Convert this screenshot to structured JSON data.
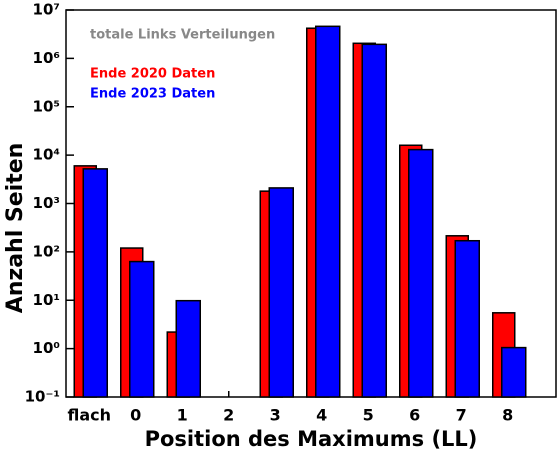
{
  "chart_data": {
    "type": "bar",
    "annotation": "totale Links Verteilungen",
    "x_label": "Position des Maximums (LL)",
    "y_label": "Anzahl Seiten",
    "categories": [
      "flach",
      "0",
      "1",
      "2",
      "3",
      "4",
      "5",
      "6",
      "7",
      "8"
    ],
    "series": [
      {
        "name": "Ende 2020 Daten",
        "color": "#ff0000",
        "values": [
          6000,
          120,
          2.2,
          null,
          1800,
          4200000,
          2050000,
          16000,
          215,
          5.5
        ]
      },
      {
        "name": "Ende 2023 Daten",
        "color": "#0000ff",
        "values": [
          5200,
          63,
          9.8,
          null,
          2100,
          4600000,
          1950000,
          13000,
          170,
          1.05
        ]
      }
    ],
    "log_scale": true,
    "ylim": [
      0.1,
      10000000
    ],
    "yticks": [
      {
        "value": 0.1,
        "label": "10⁻¹"
      },
      {
        "value": 1,
        "label": "10⁰"
      },
      {
        "value": 10,
        "label": "10¹"
      },
      {
        "value": 100,
        "label": "10²"
      },
      {
        "value": 1000,
        "label": "10³"
      },
      {
        "value": 10000,
        "label": "10⁴"
      },
      {
        "value": 100000,
        "label": "10⁵"
      },
      {
        "value": 1000000,
        "label": "10⁶"
      },
      {
        "value": 10000000,
        "label": "10⁷"
      }
    ]
  }
}
